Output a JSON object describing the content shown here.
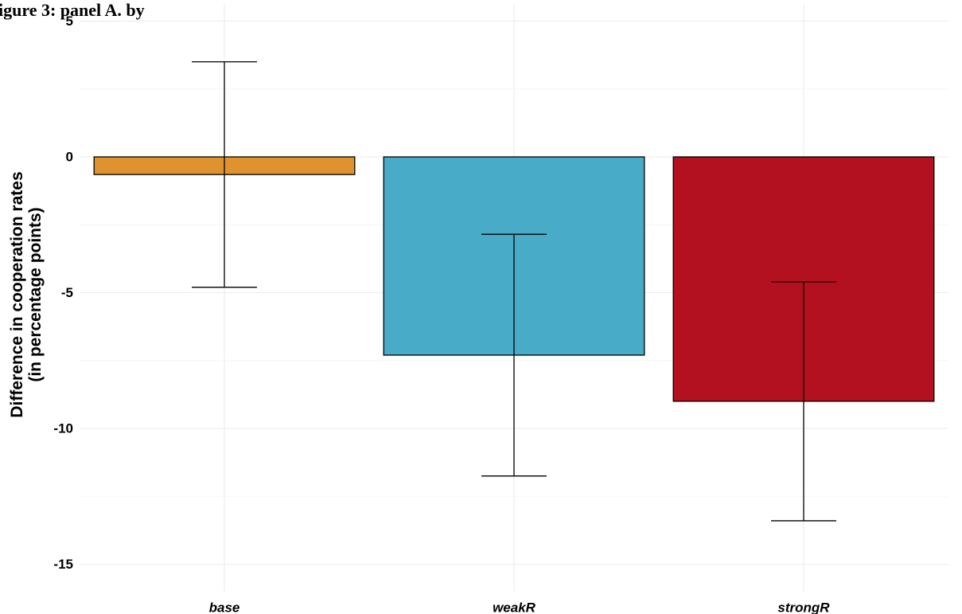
{
  "chart_data": {
    "type": "bar",
    "title": "igure 3: panel A. by",
    "categories": [
      "base",
      "weakR",
      "strongR"
    ],
    "values": [
      -0.65,
      -7.3,
      -9.0
    ],
    "error_low": [
      -4.8,
      -11.75,
      -13.4
    ],
    "error_high": [
      3.5,
      -2.85,
      -4.6
    ],
    "colors": [
      "#E0922F",
      "#48ACC9",
      "#B31020"
    ],
    "ylabel_lines": [
      "Difference in cooperation rates",
      "(in percentage points)"
    ],
    "xlabel": "",
    "ylim": [
      -16,
      5.6
    ],
    "yticks": [
      5,
      0,
      -5,
      -10,
      -15
    ],
    "ytick_labels": [
      "5",
      "0",
      "-5",
      "-10",
      "-15"
    ],
    "grid": true,
    "legend": "none"
  }
}
